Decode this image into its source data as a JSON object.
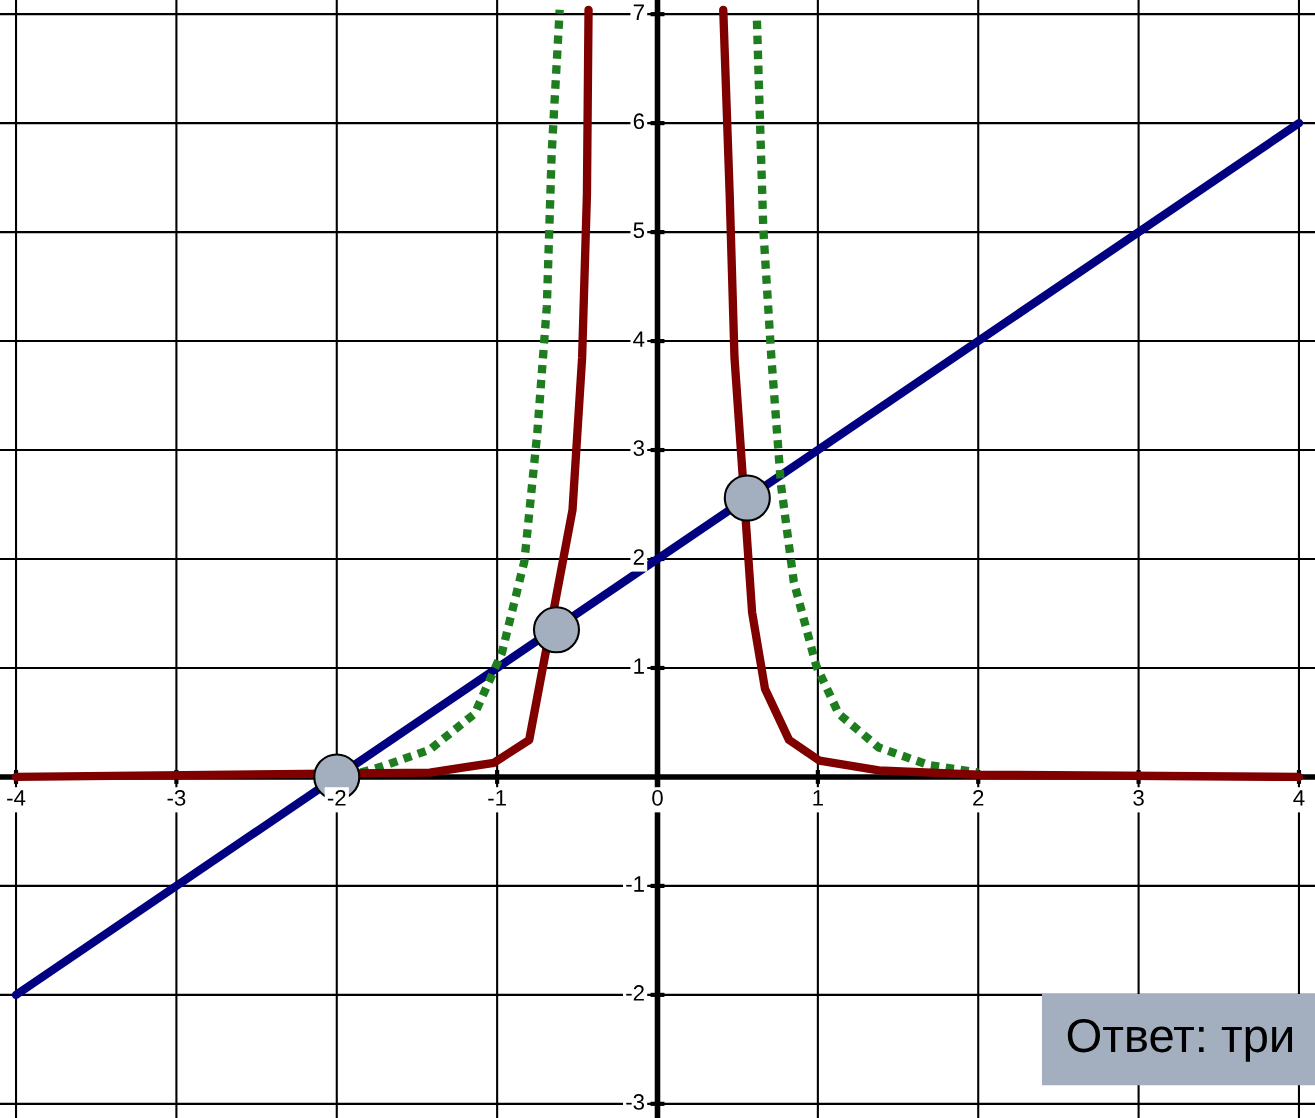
{
  "chart_data": {
    "type": "line",
    "series": [
      {
        "type": "line",
        "color": "#000080",
        "line_style": "solid",
        "x": [
          -4,
          4
        ],
        "values": [
          -2,
          6
        ]
      },
      {
        "type": "line",
        "color": "#1e7d1e",
        "line_style": "dotted",
        "x": [
          -1.85,
          -1.73,
          -1.42,
          -1.14,
          -0.97,
          -0.83,
          -0.75,
          -0.69,
          -0.66,
          -0.61,
          null,
          0.62,
          0.66,
          0.71,
          0.77,
          0.85,
          0.99,
          1.13,
          1.38,
          1.69,
          2.0
        ],
        "values": [
          0.04,
          0.09,
          0.25,
          0.58,
          1.14,
          1.98,
          3.15,
          4.32,
          5.72,
          7.04,
          null,
          6.94,
          5.02,
          3.85,
          2.68,
          1.79,
          1.02,
          0.58,
          0.27,
          0.11,
          0.04
        ]
      },
      {
        "type": "line",
        "color": "#800000",
        "line_style": "solid",
        "x": [
          -4,
          -1.42,
          -1.02,
          -0.8,
          -0.53,
          -0.47,
          -0.44,
          -0.43,
          null,
          0.41,
          0.45,
          0.48,
          0.59,
          0.67,
          0.82,
          1.01,
          1.38,
          2.0,
          4
        ],
        "values": [
          0,
          0.04,
          0.13,
          0.34,
          2.45,
          3.85,
          5.35,
          7.04,
          null,
          7.04,
          5.35,
          3.85,
          1.51,
          0.81,
          0.34,
          0.15,
          0.06,
          0.02,
          0
        ]
      },
      {
        "type": "scatter",
        "color": "#a3afbf",
        "marker": "circle",
        "x": [
          -2,
          -0.63,
          0.56
        ],
        "values": [
          0,
          1.35,
          2.56
        ]
      }
    ],
    "xlim": [
      -4.1,
      4.1
    ],
    "ylim": [
      -3.13,
      7.13
    ],
    "xticks": [
      -4,
      -3,
      -2,
      -1,
      0,
      1,
      2,
      3,
      4
    ],
    "yticks": [
      -3,
      -2,
      -1,
      1,
      2,
      3,
      4,
      5,
      6,
      7
    ],
    "grid": true,
    "annotations": [
      "Ответ: три"
    ]
  }
}
